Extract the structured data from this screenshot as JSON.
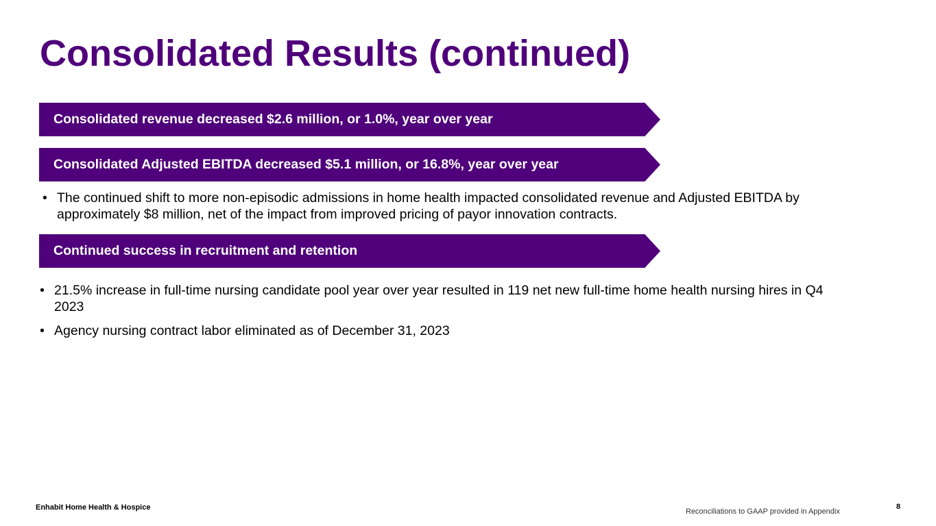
{
  "slide": {
    "title": "Consolidated Results (continued)",
    "banners": [
      "Consolidated revenue decreased $2.6 million, or 1.0%, year over year",
      "Consolidated Adjusted EBITDA decreased $5.1 million, or 16.8%, year over year",
      "Continued success in recruitment and retention"
    ],
    "bullet_symbol": "•",
    "section_2_bullets": [
      "The continued shift to more non-episodic admissions in home health impacted consolidated revenue and Adjusted EBITDA by approximately $8 million, net of the impact from improved pricing of payor innovation contracts."
    ],
    "section_3_bullets": [
      "21.5% increase in full-time nursing candidate pool year over year resulted in 119 net new full-time home health nursing hires in Q4 2023",
      "Agency nursing contract labor eliminated as of December 31, 2023"
    ]
  },
  "footer": {
    "company": "Enhabit Home Health & Hospice",
    "note": "Reconciliations to GAAP provided in Appendix",
    "page_number": "8"
  },
  "colors": {
    "brand_purple": "#4f007a"
  }
}
